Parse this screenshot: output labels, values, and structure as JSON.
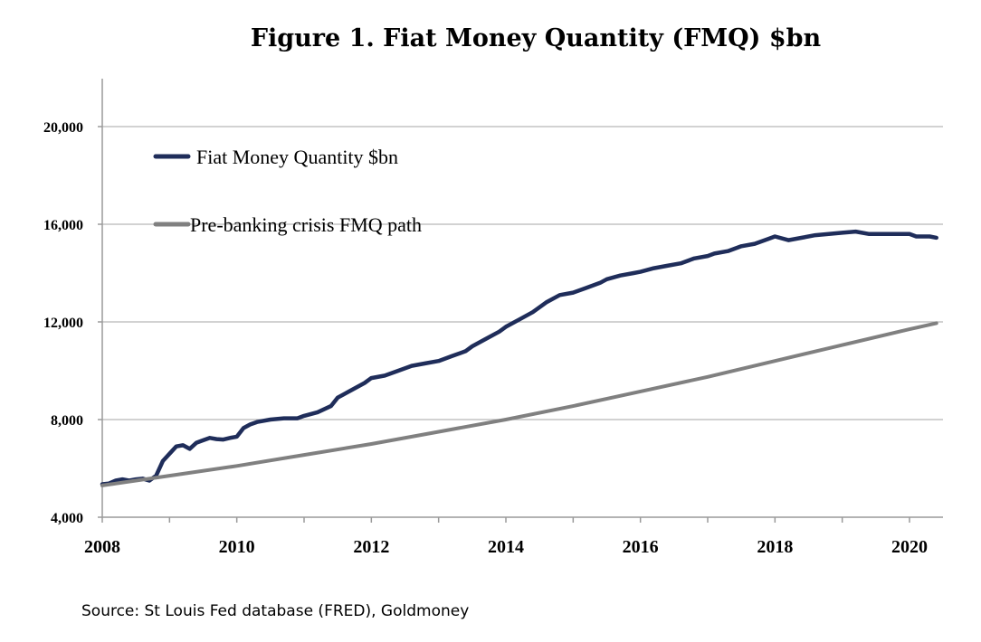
{
  "chart_data": {
    "type": "line",
    "title": "Figure 1. Fiat Money Quantity (FMQ)  $bn",
    "source": "Source: St Louis Fed  database (FRED), Goldmoney",
    "xlabel": "",
    "ylabel": "",
    "xlim": [
      2008,
      2020.5
    ],
    "ylim": [
      4000,
      22000
    ],
    "x_ticks": [
      2008,
      2010,
      2012,
      2014,
      2016,
      2018,
      2020
    ],
    "x_tick_labels": [
      "2008",
      "2010",
      "2012",
      "2014",
      "2016",
      "2018",
      "2020"
    ],
    "y_ticks": [
      4000,
      8000,
      12000,
      16000,
      20000
    ],
    "y_tick_labels": [
      "4,000",
      "8,000",
      "12,000",
      "16,000",
      "20,000"
    ],
    "grid": "horizontal",
    "legend_position": "top-left",
    "series": [
      {
        "name": "Fiat Money Quantity $bn",
        "color": "#1f2d5a",
        "points": [
          [
            2008.0,
            5350
          ],
          [
            2008.1,
            5380
          ],
          [
            2008.2,
            5500
          ],
          [
            2008.3,
            5550
          ],
          [
            2008.4,
            5500
          ],
          [
            2008.5,
            5550
          ],
          [
            2008.6,
            5580
          ],
          [
            2008.7,
            5500
          ],
          [
            2008.8,
            5700
          ],
          [
            2008.9,
            6300
          ],
          [
            2009.0,
            6600
          ],
          [
            2009.1,
            6900
          ],
          [
            2009.2,
            6950
          ],
          [
            2009.3,
            6800
          ],
          [
            2009.4,
            7050
          ],
          [
            2009.5,
            7150
          ],
          [
            2009.6,
            7250
          ],
          [
            2009.7,
            7200
          ],
          [
            2009.8,
            7180
          ],
          [
            2009.9,
            7250
          ],
          [
            2010.0,
            7300
          ],
          [
            2010.1,
            7650
          ],
          [
            2010.2,
            7800
          ],
          [
            2010.3,
            7900
          ],
          [
            2010.5,
            8000
          ],
          [
            2010.7,
            8050
          ],
          [
            2010.9,
            8050
          ],
          [
            2011.0,
            8150
          ],
          [
            2011.2,
            8300
          ],
          [
            2011.4,
            8550
          ],
          [
            2011.5,
            8900
          ],
          [
            2011.7,
            9200
          ],
          [
            2011.9,
            9500
          ],
          [
            2012.0,
            9700
          ],
          [
            2012.2,
            9800
          ],
          [
            2012.4,
            10000
          ],
          [
            2012.6,
            10200
          ],
          [
            2012.8,
            10300
          ],
          [
            2013.0,
            10400
          ],
          [
            2013.2,
            10600
          ],
          [
            2013.4,
            10800
          ],
          [
            2013.5,
            11000
          ],
          [
            2013.7,
            11300
          ],
          [
            2013.9,
            11600
          ],
          [
            2014.0,
            11800
          ],
          [
            2014.2,
            12100
          ],
          [
            2014.4,
            12400
          ],
          [
            2014.6,
            12800
          ],
          [
            2014.8,
            13100
          ],
          [
            2015.0,
            13200
          ],
          [
            2015.2,
            13400
          ],
          [
            2015.4,
            13600
          ],
          [
            2015.5,
            13750
          ],
          [
            2015.7,
            13900
          ],
          [
            2015.9,
            14000
          ],
          [
            2016.0,
            14050
          ],
          [
            2016.2,
            14200
          ],
          [
            2016.4,
            14300
          ],
          [
            2016.6,
            14400
          ],
          [
            2016.8,
            14600
          ],
          [
            2017.0,
            14700
          ],
          [
            2017.1,
            14800
          ],
          [
            2017.3,
            14900
          ],
          [
            2017.5,
            15100
          ],
          [
            2017.7,
            15200
          ],
          [
            2017.9,
            15400
          ],
          [
            2018.0,
            15500
          ],
          [
            2018.2,
            15350
          ],
          [
            2018.4,
            15450
          ],
          [
            2018.6,
            15550
          ],
          [
            2018.8,
            15600
          ],
          [
            2019.0,
            15650
          ],
          [
            2019.2,
            15700
          ],
          [
            2019.4,
            15600
          ],
          [
            2019.6,
            15600
          ],
          [
            2019.8,
            15600
          ],
          [
            2020.0,
            15600
          ],
          [
            2020.1,
            15500
          ],
          [
            2020.2,
            15500
          ],
          [
            2020.3,
            15500
          ],
          [
            2020.4,
            15450
          ]
        ]
      },
      {
        "name": "Pre-banking crisis FMQ path",
        "color": "#808080",
        "points": [
          [
            2008.0,
            5300
          ],
          [
            2009.0,
            5700
          ],
          [
            2010.0,
            6100
          ],
          [
            2011.0,
            6550
          ],
          [
            2012.0,
            7000
          ],
          [
            2013.0,
            7500
          ],
          [
            2014.0,
            8000
          ],
          [
            2015.0,
            8550
          ],
          [
            2016.0,
            9150
          ],
          [
            2017.0,
            9750
          ],
          [
            2018.0,
            10400
          ],
          [
            2019.0,
            11050
          ],
          [
            2020.0,
            11700
          ],
          [
            2020.4,
            11950
          ]
        ]
      }
    ]
  }
}
